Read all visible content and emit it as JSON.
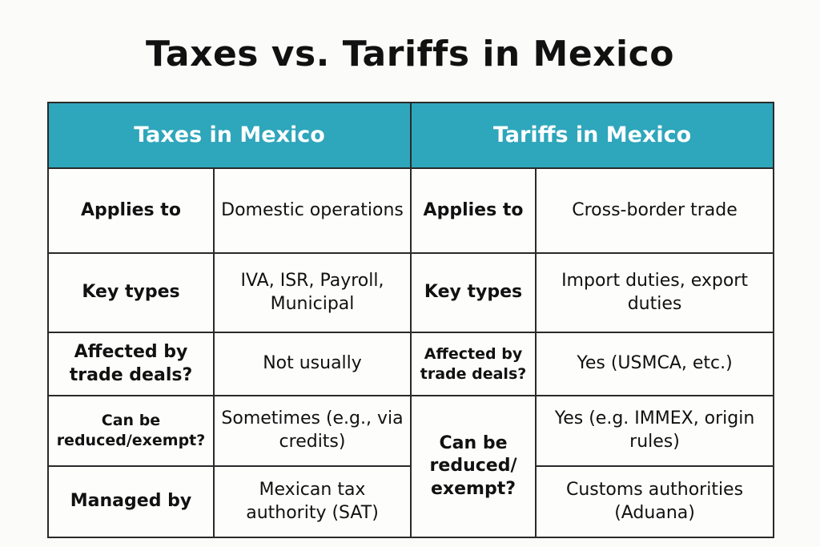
{
  "title": "Taxes vs. Tariffs in Mexico",
  "colors": {
    "header_bg": "#2ea6bb",
    "header_text": "#ffffff",
    "border": "#2a2a2a"
  },
  "headers": {
    "taxes": "Taxes in Mexico",
    "tariffs": "Tariffs in Mexico"
  },
  "taxes": {
    "applies_label": "Applies to",
    "applies_value": "Domestic operations",
    "types_label": "Key types",
    "types_value": "IVA, ISR, Payroll, Municipal",
    "trade_label": "Affected by trade deals?",
    "trade_value": "Not usually",
    "reduce_label": "Can be reduced/exempt?",
    "reduce_value": "Sometimes (e.g., via credits)",
    "managed_label": "Managed by",
    "managed_value": "Mexican tax authority (SAT)"
  },
  "tariffs": {
    "applies_label": "Applies to",
    "applies_value": "Cross-border trade",
    "types_label": "Key types",
    "types_value": "Import duties, export duties",
    "trade_label": "Affected by trade deals?",
    "trade_value": "Yes (USMCA, etc.)",
    "reduce_label": "Can be reduced/ exempt?",
    "reduce_value": "Yes (e.g. IMMEX, origin rules)",
    "managed_value": "Customs authorities (Aduana)"
  }
}
